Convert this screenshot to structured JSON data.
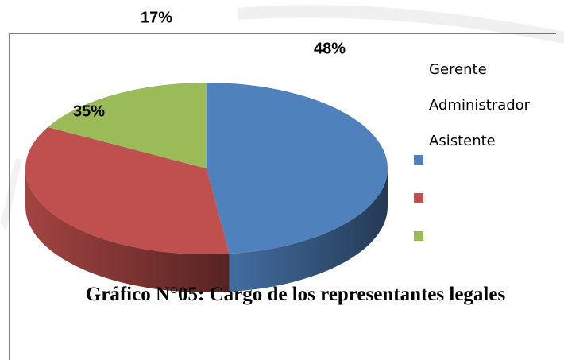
{
  "chart_data": {
    "type": "pie",
    "title": "Gráfico N°05: Cargo de los representantes legales",
    "categories": [
      "Gerente",
      "Administrador",
      "Asistente"
    ],
    "values": [
      48,
      35,
      17
    ],
    "value_labels": [
      "48%",
      "35%",
      "17%"
    ],
    "colors": [
      "#4f81bd",
      "#c0504d",
      "#9bbb59"
    ],
    "three_d": true
  }
}
